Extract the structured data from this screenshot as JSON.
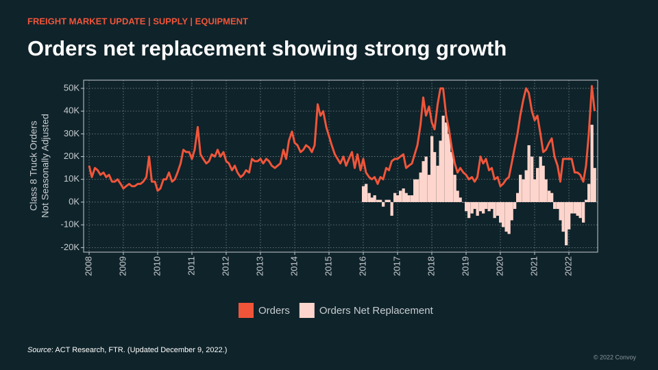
{
  "header": "FREIGHT MARKET UPDATE  |  SUPPLY  |  EQUIPMENT",
  "title": "Orders net replacement showing strong growth",
  "chart_data": {
    "type": "line-bar",
    "y_label": [
      "Class 8 Truck Orders",
      "Not Seasonally Adjusted"
    ],
    "xlim": [
      2007.84,
      2022.84
    ],
    "xticks": [
      2008,
      2009,
      2010,
      2011,
      2012,
      2013,
      2014,
      2015,
      2016,
      2017,
      2018,
      2019,
      2020,
      2021,
      2022
    ],
    "ylim": [
      -22000,
      53600
    ],
    "yticks": [
      {
        "value": -20000,
        "label": "-20K"
      },
      {
        "value": -10000,
        "label": "-10K"
      },
      {
        "value": 0,
        "label": "0K"
      },
      {
        "value": 10000,
        "label": "10K"
      },
      {
        "value": 20000,
        "label": "20K"
      },
      {
        "value": 30000,
        "label": "30K"
      },
      {
        "value": 40000,
        "label": "40K"
      },
      {
        "value": 50000,
        "label": "50K"
      }
    ],
    "grid": true,
    "x": [
      2008,
      2008.08,
      2008.17,
      2008.25,
      2008.33,
      2008.42,
      2008.5,
      2008.58,
      2008.67,
      2008.75,
      2008.83,
      2008.92,
      2009,
      2009.08,
      2009.17,
      2009.25,
      2009.33,
      2009.42,
      2009.5,
      2009.58,
      2009.67,
      2009.75,
      2009.83,
      2009.92,
      2010,
      2010.08,
      2010.17,
      2010.25,
      2010.33,
      2010.42,
      2010.5,
      2010.58,
      2010.67,
      2010.75,
      2010.83,
      2010.92,
      2011,
      2011.08,
      2011.17,
      2011.25,
      2011.33,
      2011.42,
      2011.5,
      2011.58,
      2011.67,
      2011.75,
      2011.83,
      2011.92,
      2012,
      2012.08,
      2012.17,
      2012.25,
      2012.33,
      2012.42,
      2012.5,
      2012.58,
      2012.67,
      2012.75,
      2012.83,
      2012.92,
      2013,
      2013.08,
      2013.17,
      2013.25,
      2013.33,
      2013.42,
      2013.5,
      2013.58,
      2013.67,
      2013.75,
      2013.83,
      2013.92,
      2014,
      2014.08,
      2014.17,
      2014.25,
      2014.33,
      2014.42,
      2014.5,
      2014.58,
      2014.67,
      2014.75,
      2014.83,
      2014.92,
      2015,
      2015.08,
      2015.17,
      2015.25,
      2015.33,
      2015.42,
      2015.5,
      2015.58,
      2015.67,
      2015.75,
      2015.83,
      2015.92,
      2016,
      2016.08,
      2016.17,
      2016.25,
      2016.33,
      2016.42,
      2016.5,
      2016.58,
      2016.67,
      2016.75,
      2016.83,
      2016.92,
      2017,
      2017.08,
      2017.17,
      2017.25,
      2017.33,
      2017.42,
      2017.5,
      2017.58,
      2017.67,
      2017.75,
      2017.83,
      2017.92,
      2018,
      2018.08,
      2018.17,
      2018.25,
      2018.33,
      2018.42,
      2018.5,
      2018.58,
      2018.67,
      2018.75,
      2018.83,
      2018.92,
      2019,
      2019.08,
      2019.17,
      2019.25,
      2019.33,
      2019.42,
      2019.5,
      2019.58,
      2019.67,
      2019.75,
      2019.83,
      2019.92,
      2020,
      2020.08,
      2020.17,
      2020.25,
      2020.33,
      2020.42,
      2020.5,
      2020.58,
      2020.67,
      2020.75,
      2020.83,
      2020.92,
      2021,
      2021.08,
      2021.17,
      2021.25,
      2021.33,
      2021.42,
      2021.5,
      2021.58,
      2021.67,
      2021.75,
      2021.83,
      2021.92,
      2022,
      2022.08,
      2022.17,
      2022.25,
      2022.33,
      2022.42,
      2022.5,
      2022.58,
      2022.67,
      2022.75
    ],
    "series": [
      {
        "name": "Orders",
        "kind": "line",
        "color": "#f0553a",
        "values": [
          16000,
          11000,
          15000,
          14000,
          12000,
          13000,
          11000,
          12000,
          9000,
          9000,
          10000,
          8000,
          6000,
          7000,
          8000,
          7000,
          7000,
          8000,
          8000,
          9000,
          11000,
          20000,
          9000,
          9000,
          5000,
          6000,
          10000,
          10000,
          13000,
          9000,
          10000,
          13000,
          17000,
          23000,
          22000,
          22000,
          19000,
          23000,
          33000,
          21000,
          19000,
          17000,
          18000,
          21000,
          20000,
          23000,
          20000,
          22000,
          18000,
          17000,
          14000,
          16000,
          13000,
          11000,
          12000,
          14000,
          13000,
          19000,
          18000,
          18000,
          19000,
          17000,
          19000,
          18000,
          16000,
          15000,
          16000,
          17000,
          23000,
          19000,
          27000,
          31000,
          26000,
          25000,
          22000,
          23000,
          25000,
          24000,
          22000,
          25000,
          43000,
          38000,
          40000,
          33000,
          29000,
          25000,
          21000,
          19000,
          17000,
          20000,
          16000,
          19000,
          22000,
          15000,
          21000,
          14000,
          19000,
          13000,
          11000,
          10000,
          11000,
          8000,
          11000,
          10000,
          15000,
          14000,
          18000,
          19000,
          19000,
          20000,
          21000,
          15000,
          16000,
          17000,
          21000,
          25000,
          34000,
          46000,
          38000,
          42000,
          35000,
          32000,
          43000,
          50000,
          50000,
          38000,
          32000,
          24000,
          17000,
          13000,
          15000,
          13000,
          12000,
          10000,
          11000,
          9000,
          11000,
          20000,
          17000,
          19000,
          14000,
          15000,
          10000,
          11000,
          7000,
          8000,
          10000,
          11000,
          17000,
          24000,
          30000,
          38000,
          45000,
          50000,
          48000,
          40000,
          36000,
          38000,
          30000,
          22000,
          23000,
          26000,
          28000,
          20000,
          16000,
          9000,
          19000,
          19000,
          19000,
          19000,
          13000,
          13000,
          12000,
          9000,
          16000,
          30000,
          51000,
          40000
        ]
      },
      {
        "name": "Orders Net Replacement",
        "kind": "bar",
        "color": "#fdd5cc",
        "values": [
          null,
          null,
          null,
          null,
          null,
          null,
          null,
          null,
          null,
          null,
          null,
          null,
          null,
          null,
          null,
          null,
          null,
          null,
          null,
          null,
          null,
          null,
          null,
          null,
          null,
          null,
          null,
          null,
          null,
          null,
          null,
          null,
          null,
          null,
          null,
          null,
          null,
          null,
          null,
          null,
          null,
          null,
          null,
          null,
          null,
          null,
          null,
          null,
          null,
          null,
          null,
          null,
          null,
          null,
          null,
          null,
          null,
          null,
          null,
          null,
          null,
          null,
          null,
          null,
          null,
          null,
          null,
          null,
          null,
          null,
          null,
          null,
          null,
          null,
          null,
          null,
          null,
          null,
          null,
          null,
          null,
          null,
          null,
          null,
          null,
          null,
          null,
          null,
          null,
          null,
          null,
          null,
          null,
          null,
          null,
          null,
          7000,
          8000,
          4000,
          2000,
          3000,
          1000,
          1000,
          -2000,
          1000,
          1000,
          -6000,
          4000,
          3000,
          5000,
          6000,
          4000,
          3000,
          3000,
          10000,
          10000,
          13000,
          18000,
          20000,
          12000,
          29000,
          22000,
          16000,
          27000,
          38000,
          35000,
          30000,
          22000,
          12000,
          5000,
          2000,
          0,
          -4000,
          -7000,
          -5000,
          -3000,
          -6000,
          -4000,
          -5000,
          -3000,
          -4000,
          -3000,
          -7000,
          -6000,
          -9000,
          -11000,
          -13000,
          -14000,
          -8000,
          -3000,
          4000,
          12000,
          10000,
          14000,
          25000,
          20000,
          10000,
          15000,
          20000,
          16000,
          10000,
          5000,
          4000,
          -3000,
          -3000,
          -8000,
          -13000,
          -19000,
          -12000,
          -5000,
          -5000,
          -6000,
          -7000,
          -9000,
          1000,
          8000,
          34000,
          15000
        ]
      }
    ]
  },
  "source": {
    "label": "Source",
    "text": ": ACT Research, FTR. (Updated December 9, 2022.)"
  },
  "footer": "© 2022 Convoy"
}
